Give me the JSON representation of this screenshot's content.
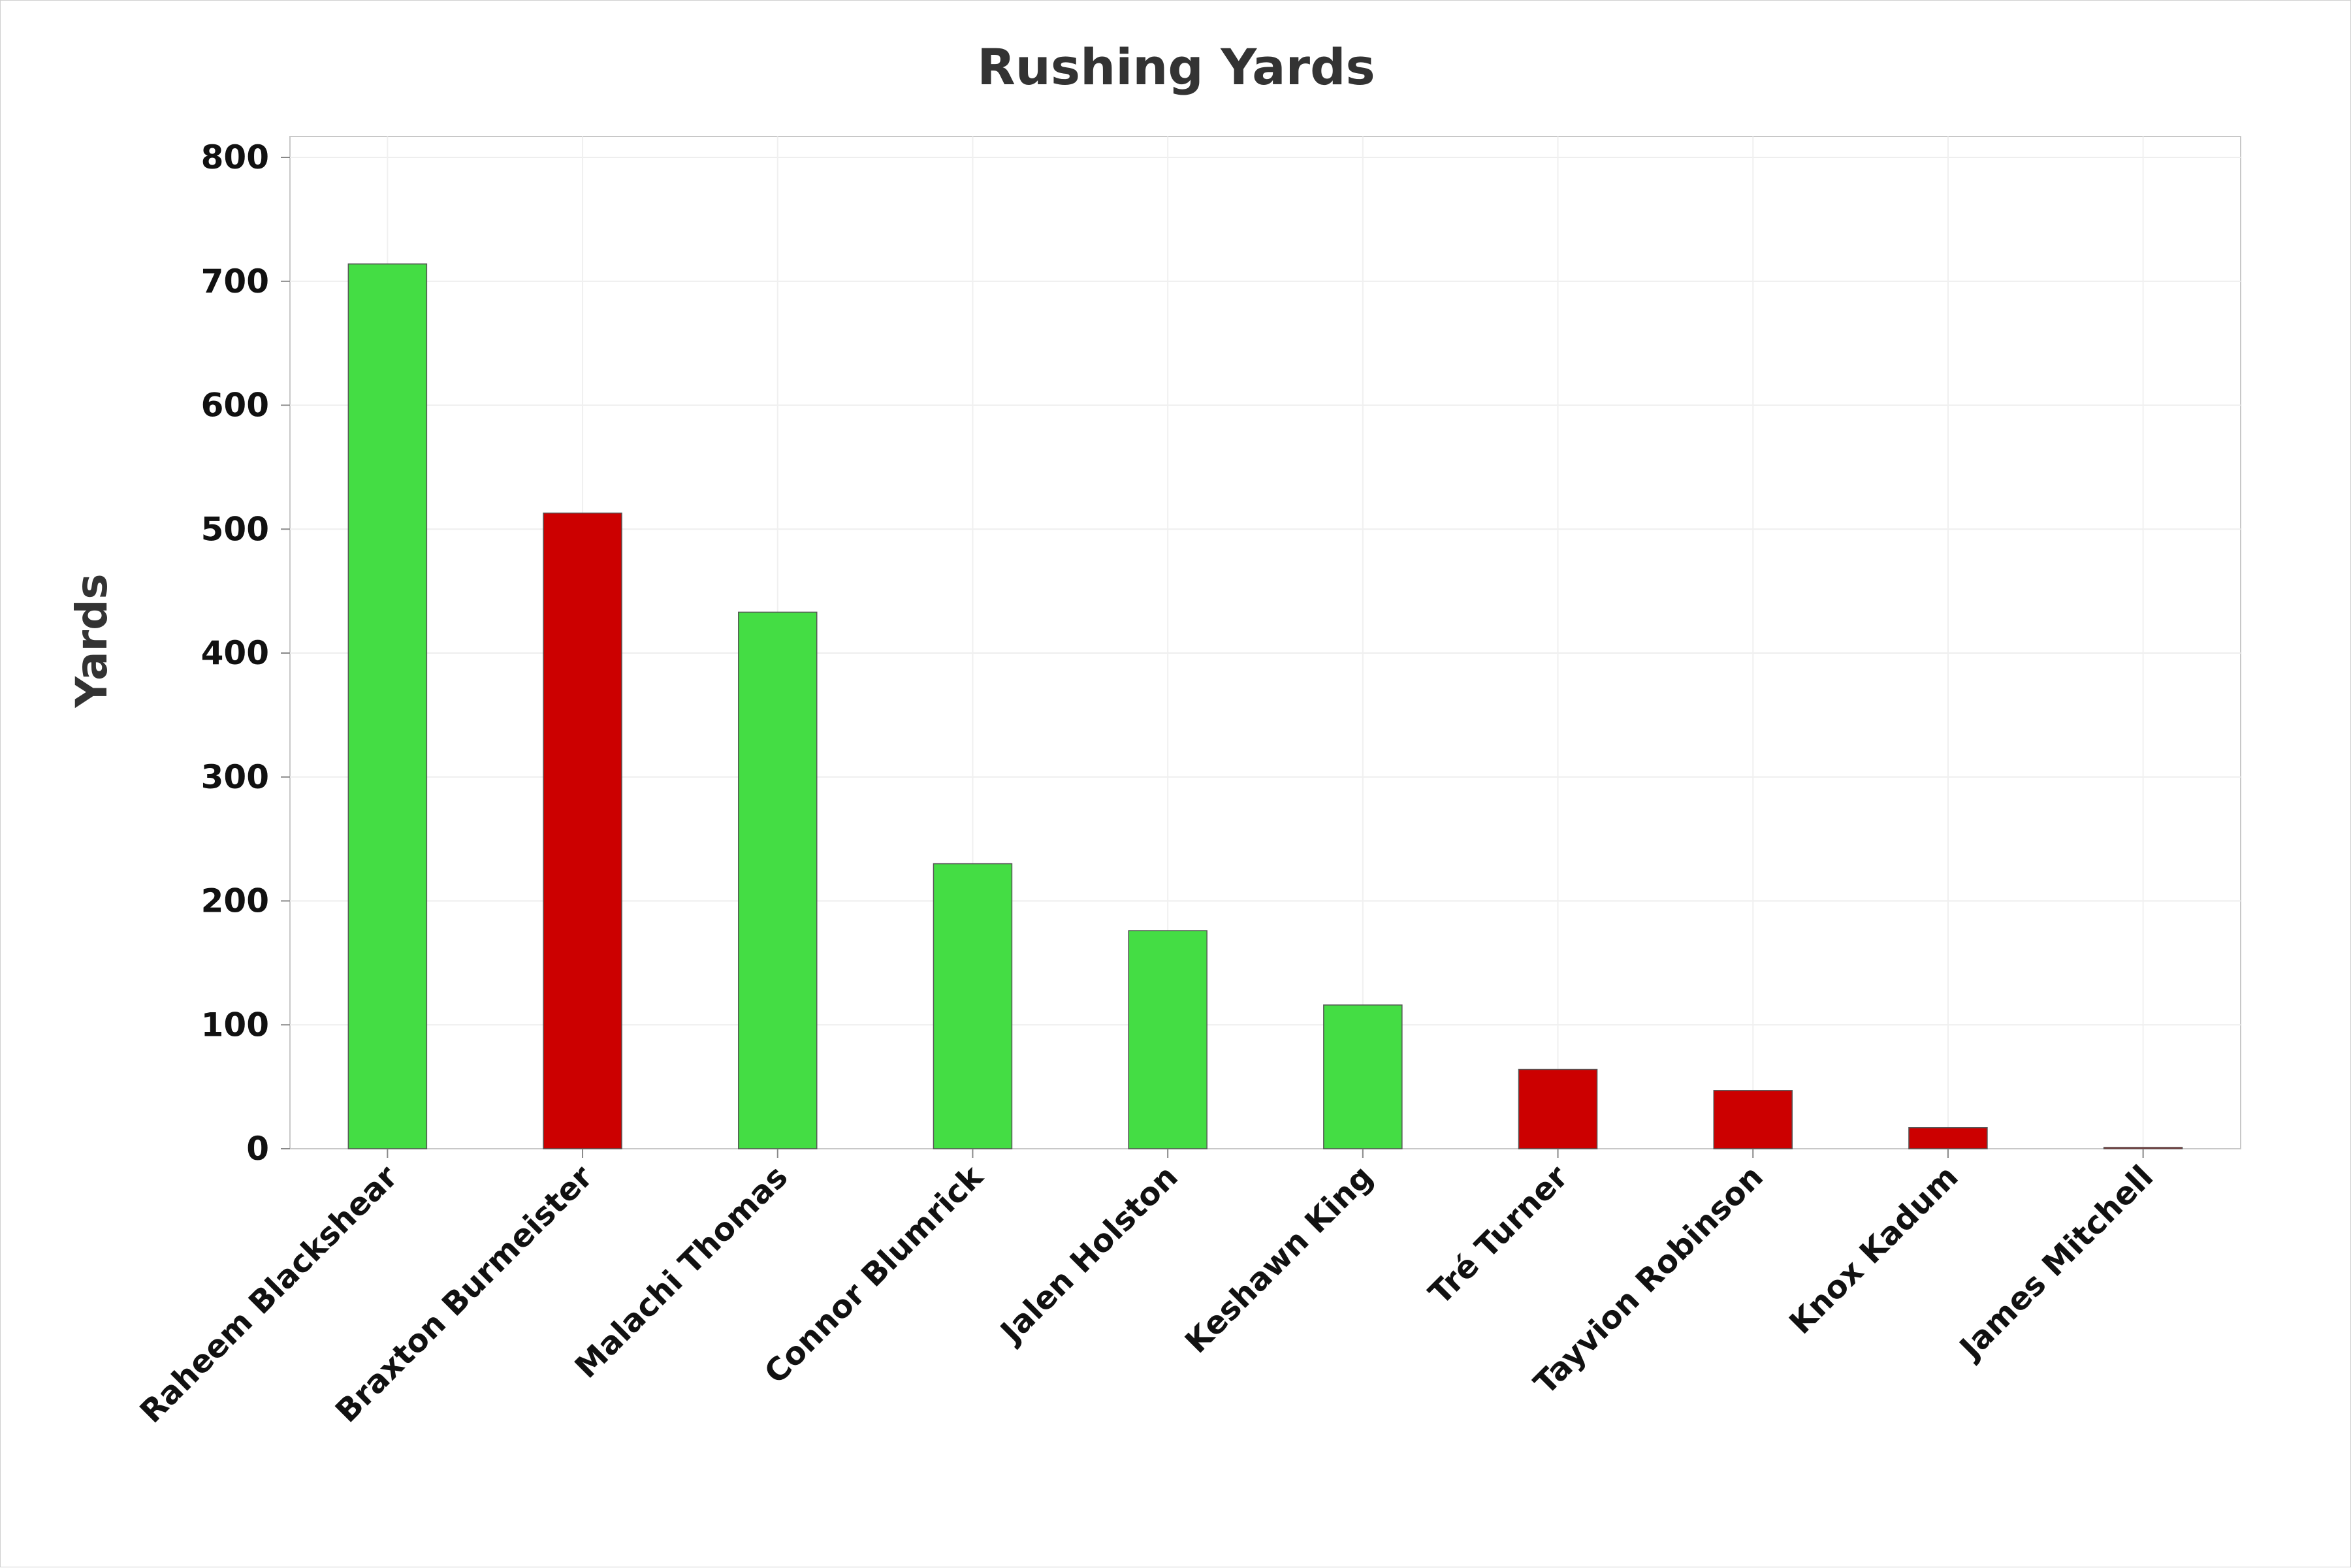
{
  "chart_data": {
    "type": "bar",
    "title": "Rushing Yards",
    "xlabel": "",
    "ylabel": "Yards",
    "ylim": [
      0,
      800
    ],
    "yticks": [
      0,
      100,
      200,
      300,
      400,
      500,
      600,
      700,
      800
    ],
    "categories": [
      "Raheem Blackshear",
      "Braxton Burmeister",
      "Malachi Thomas",
      "Connor Blumrick",
      "Jalen Holston",
      "Keshawn King",
      "Tré Turner",
      "Tayvion Robinson",
      "Knox Kadum",
      "James Mitchell"
    ],
    "values": [
      714,
      513,
      433,
      230,
      176,
      116,
      64,
      47,
      17,
      0
    ],
    "bar_colors": [
      "#44dd44",
      "#cc0000",
      "#44dd44",
      "#44dd44",
      "#44dd44",
      "#44dd44",
      "#cc0000",
      "#cc0000",
      "#cc0000",
      "#cc0000"
    ],
    "grid": true,
    "legend": "none"
  }
}
